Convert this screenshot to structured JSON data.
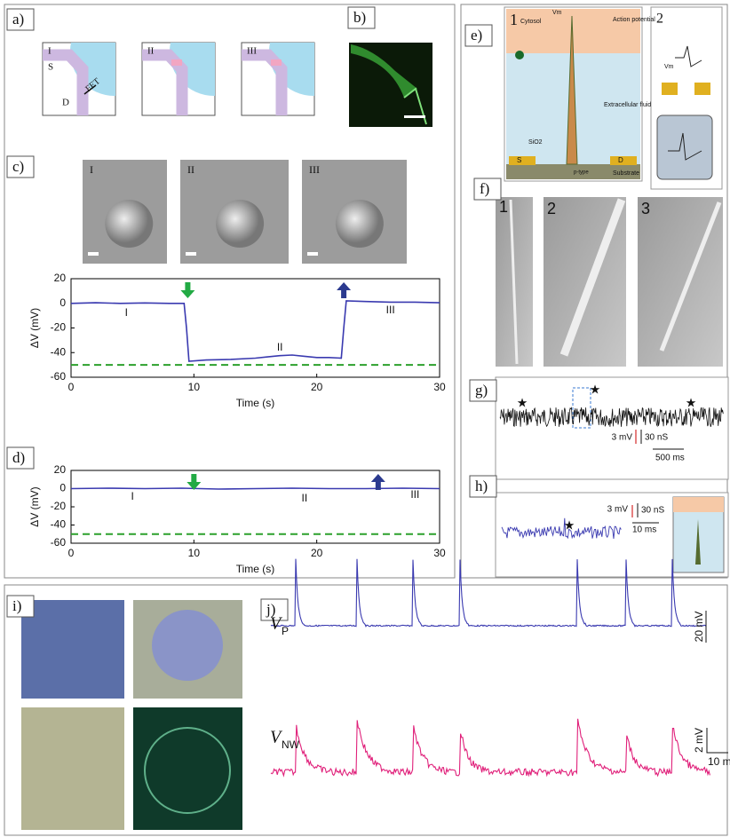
{
  "panel_labels": [
    "a)",
    "b)",
    "c)",
    "d)",
    "e)",
    "f)",
    "g)",
    "h)",
    "i)",
    "j)"
  ],
  "a": {
    "sub": [
      "I",
      "II",
      "III"
    ],
    "source": "S",
    "drain": "D",
    "fet": "FET"
  },
  "c_images": [
    "I",
    "II",
    "III"
  ],
  "e": {
    "n1": "1",
    "n2": "2",
    "cytosol": "Cytosol",
    "ap": "Action potential",
    "fluid": "Extracellular fluid",
    "sio2": "SiO2",
    "s": "S",
    "d": "D",
    "ptype": "p-type",
    "substrate": "Substrate",
    "vm": "Vm"
  },
  "f": [
    "1",
    "2",
    "3"
  ],
  "g": {
    "v": "3 mV",
    "c": "30 nS",
    "t": "500 ms"
  },
  "h": {
    "v": "3 mV",
    "c": "30 nS",
    "t": "10 ms"
  },
  "j": {
    "v": "V",
    "p": "P",
    "nw": "NW",
    "s1": "20 mV",
    "s2": "2 mV",
    "t": "10 m"
  },
  "chart_data": [
    {
      "type": "line",
      "ylabel": "ΔV (mV)",
      "xlabel": "Time (s)",
      "xlim": [
        0,
        30
      ],
      "xticks": [
        0,
        10,
        20,
        30
      ],
      "ylim": [
        -60,
        20
      ],
      "yticks": [
        -60,
        -40,
        -20,
        0,
        20
      ],
      "x": [
        0,
        2,
        4,
        6,
        8,
        9.2,
        9.4,
        9.6,
        11,
        13,
        15,
        16,
        17,
        18,
        19,
        20,
        21,
        22,
        22.2,
        22.4,
        24,
        26,
        28,
        30
      ],
      "series": [
        {
          "color": "#3a3ab0",
          "values": [
            0,
            0.5,
            0,
            0.3,
            0,
            0,
            -20,
            -47,
            -46,
            -45.5,
            -44.5,
            -43.5,
            -42.5,
            -42,
            -43,
            -44,
            -44,
            -44.5,
            -20,
            2,
            1.5,
            1,
            1,
            0.5
          ]
        }
      ],
      "reference_line": {
        "value": -50,
        "color": "#2ca02c"
      },
      "events": [
        {
          "x": 9.5,
          "color": "#22aa44",
          "direction": "down"
        },
        {
          "x": 22.2,
          "color": "#2b3a8f",
          "direction": "up"
        }
      ],
      "annotations": [
        "I",
        "II",
        "III"
      ]
    },
    {
      "type": "line",
      "ylabel": "ΔV (mV)",
      "xlabel": "Time (s)",
      "xlim": [
        0,
        30
      ],
      "xticks": [
        0,
        10,
        20,
        30
      ],
      "ylim": [
        -60,
        20
      ],
      "yticks": [
        -60,
        -40,
        -20,
        0,
        20
      ],
      "x": [
        0,
        3,
        6,
        9,
        12,
        15,
        18,
        21,
        24,
        27,
        30
      ],
      "series": [
        {
          "color": "#3a3ab0",
          "values": [
            0,
            0.5,
            0,
            0.5,
            -0.5,
            0,
            0.5,
            0,
            0,
            0.5,
            0
          ]
        }
      ],
      "reference_line": {
        "value": -50,
        "color": "#2ca02c"
      },
      "events": [
        {
          "x": 10,
          "color": "#22aa44",
          "direction": "down"
        },
        {
          "x": 25,
          "color": "#2b3a8f",
          "direction": "up"
        }
      ],
      "annotations": [
        "I",
        "II",
        "III"
      ]
    }
  ]
}
